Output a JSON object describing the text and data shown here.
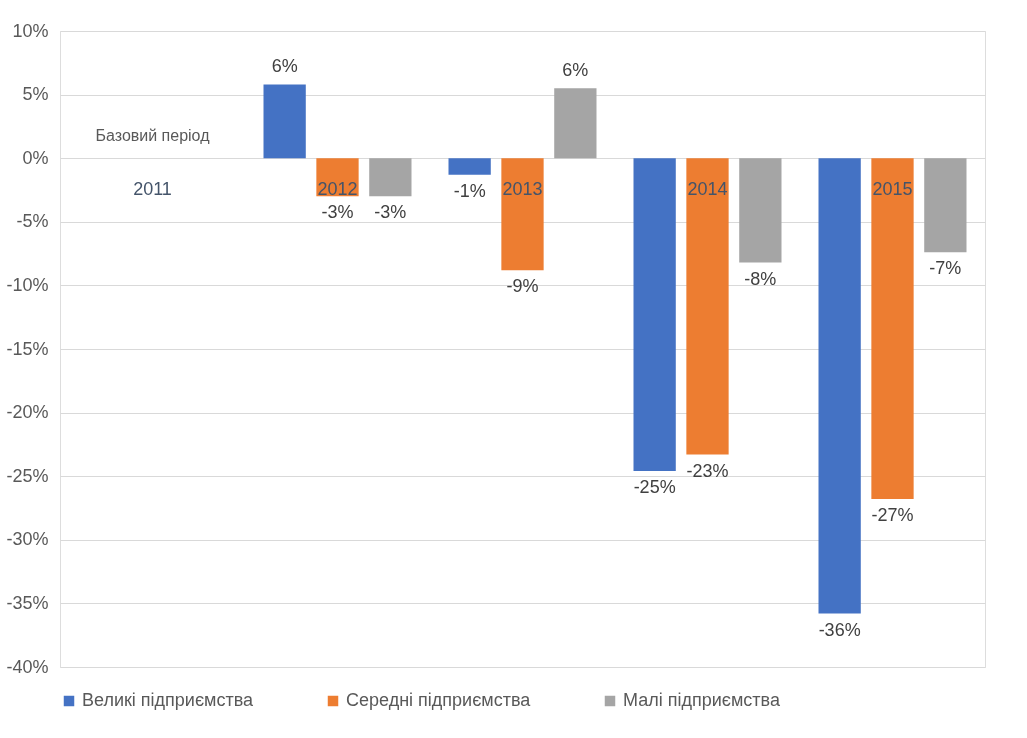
{
  "chart_data": {
    "type": "bar",
    "categories": [
      "2011",
      "2012",
      "2013",
      "2014",
      "2015"
    ],
    "series": [
      {
        "name": "Великі підприємства",
        "color": "#4472c4",
        "values": [
          0,
          5.8,
          -1.3,
          -24.6,
          -35.8
        ],
        "value_labels": [
          null,
          "6%",
          "-1%",
          "-25%",
          "-36%"
        ]
      },
      {
        "name": "Середні підприємства",
        "color": "#ed7d31",
        "values": [
          0,
          -3,
          -8.8,
          -23.3,
          -26.8
        ],
        "value_labels": [
          null,
          "-3%",
          "-9%",
          "-23%",
          "-27%"
        ]
      },
      {
        "name": "Малі підприємства",
        "color": "#a5a5a5",
        "values": [
          0,
          -3,
          5.5,
          -8.2,
          -7.4
        ],
        "value_labels": [
          null,
          "-3%",
          "6%",
          "-8%",
          "-7%"
        ]
      }
    ],
    "ylim": [
      -40,
      10
    ],
    "yticks": [
      {
        "value": 10,
        "label": "10%"
      },
      {
        "value": 5,
        "label": "5%"
      },
      {
        "value": 0,
        "label": "0%"
      },
      {
        "value": -5,
        "label": "-5%"
      },
      {
        "value": -10,
        "label": "-10%"
      },
      {
        "value": -15,
        "label": "-15%"
      },
      {
        "value": -20,
        "label": "-20%"
      },
      {
        "value": -25,
        "label": "-25%"
      },
      {
        "value": -30,
        "label": "-30%"
      },
      {
        "value": -35,
        "label": "-35%"
      },
      {
        "value": -40,
        "label": "-40%"
      }
    ],
    "grid": "y",
    "legend": "bottom",
    "annotations": [
      {
        "text": "Базовий період",
        "x": "2011",
        "y": 0
      }
    ]
  }
}
